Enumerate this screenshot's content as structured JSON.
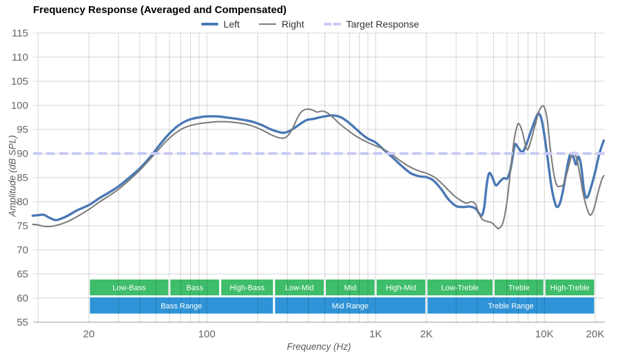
{
  "header": {
    "title": "Frequency Response (Averaged and Compensated)"
  },
  "legend": {
    "items": [
      {
        "label": "Left",
        "color": "#4a78b5",
        "style": "solid-thick"
      },
      {
        "label": "Right",
        "color": "#7d7d7d",
        "style": "solid-thin"
      },
      {
        "label": "Target Response",
        "color": "#c8caf5",
        "style": "dashed"
      }
    ]
  },
  "axes": {
    "x_title": "Frequency (Hz)",
    "y_title": "Amplitude (dB SPL)",
    "x_ticks": [
      {
        "f": 20,
        "label": "20"
      },
      {
        "f": 100,
        "label": "100"
      },
      {
        "f": 1000,
        "label": "1K"
      },
      {
        "f": 2000,
        "label": "2K"
      },
      {
        "f": 10000,
        "label": "10K"
      },
      {
        "f": 20000,
        "label": "20K"
      }
    ],
    "y_ticks": [
      55,
      60,
      65,
      70,
      75,
      80,
      85,
      90,
      95,
      100,
      105,
      110,
      115
    ],
    "minor_gridline_freqs": [
      10,
      20,
      30,
      40,
      50,
      60,
      70,
      80,
      90,
      100,
      200,
      300,
      400,
      500,
      600,
      700,
      800,
      900,
      1000,
      2000,
      3000,
      4000,
      5000,
      6000,
      7000,
      8000,
      9000,
      10000,
      20000
    ],
    "gridline_color": "rgba(0,0,0,0.16)",
    "axis_line_color": "#9b9b9b",
    "tick_label_color": "#666666"
  },
  "bands": {
    "sub_color": "#3ebd6a",
    "main_color": "#2f94d7",
    "label_color": "#ffffff",
    "sub": [
      {
        "label": "Low-Bass",
        "from": 20,
        "to": 60
      },
      {
        "label": "Bass",
        "from": 60,
        "to": 120
      },
      {
        "label": "High-Bass",
        "from": 120,
        "to": 250
      },
      {
        "label": "Low-Mid",
        "from": 250,
        "to": 500
      },
      {
        "label": "Mid",
        "from": 500,
        "to": 1000
      },
      {
        "label": "High-Mid",
        "from": 1000,
        "to": 2000
      },
      {
        "label": "Low-Treble",
        "from": 2000,
        "to": 5000
      },
      {
        "label": "Treble",
        "from": 5000,
        "to": 10000
      },
      {
        "label": "High-Treble",
        "from": 10000,
        "to": 20000
      }
    ],
    "main": [
      {
        "label": "Bass Range",
        "from": 20,
        "to": 250
      },
      {
        "label": "Mid Range",
        "from": 250,
        "to": 2000
      },
      {
        "label": "Treble Range",
        "from": 2000,
        "to": 20000
      }
    ]
  },
  "chart_data": {
    "type": "line",
    "title": "Frequency Response (Averaged and Compensated)",
    "xlabel": "Frequency (Hz)",
    "ylabel": "Amplitude (dB SPL)",
    "x_scale": "log",
    "xlim": [
      9.3,
      22500
    ],
    "ylim": [
      55,
      115
    ],
    "grid": true,
    "legend_position": "top-center",
    "target_db": 90,
    "series": [
      {
        "name": "Left",
        "color": "#4a78b5",
        "width": 3.4,
        "points": [
          [
            9.3,
            77.1
          ],
          [
            10,
            77.2
          ],
          [
            10.8,
            77.3
          ],
          [
            11.5,
            76.8
          ],
          [
            12.6,
            76.2
          ],
          [
            13.5,
            76.4
          ],
          [
            15,
            77.1
          ],
          [
            17,
            78.2
          ],
          [
            20,
            79.3
          ],
          [
            23,
            80.7
          ],
          [
            26,
            81.8
          ],
          [
            30,
            83.2
          ],
          [
            35,
            85.1
          ],
          [
            40,
            86.9
          ],
          [
            46,
            89.2
          ],
          [
            52,
            91.6
          ],
          [
            58,
            93.6
          ],
          [
            65,
            95.3
          ],
          [
            72,
            96.4
          ],
          [
            80,
            97.1
          ],
          [
            90,
            97.5
          ],
          [
            100,
            97.7
          ],
          [
            115,
            97.7
          ],
          [
            130,
            97.5
          ],
          [
            150,
            97.2
          ],
          [
            170,
            96.9
          ],
          [
            190,
            96.5
          ],
          [
            215,
            95.8
          ],
          [
            240,
            95.0
          ],
          [
            265,
            94.5
          ],
          [
            285,
            94.3
          ],
          [
            310,
            94.7
          ],
          [
            340,
            95.6
          ],
          [
            370,
            96.5
          ],
          [
            395,
            97.0
          ],
          [
            430,
            97.2
          ],
          [
            465,
            97.5
          ],
          [
            500,
            97.7
          ],
          [
            545,
            97.9
          ],
          [
            590,
            97.8
          ],
          [
            640,
            97.3
          ],
          [
            700,
            96.3
          ],
          [
            760,
            95.2
          ],
          [
            830,
            94.0
          ],
          [
            900,
            93.1
          ],
          [
            1000,
            92.3
          ],
          [
            1100,
            91.0
          ],
          [
            1250,
            89.3
          ],
          [
            1400,
            87.7
          ],
          [
            1600,
            86.0
          ],
          [
            1800,
            85.3
          ],
          [
            2000,
            85.1
          ],
          [
            2200,
            84.4
          ],
          [
            2450,
            82.6
          ],
          [
            2700,
            80.5
          ],
          [
            3000,
            79.1
          ],
          [
            3300,
            78.9
          ],
          [
            3600,
            79.0
          ],
          [
            3900,
            78.6
          ],
          [
            4100,
            77.6
          ],
          [
            4250,
            77.1
          ],
          [
            4400,
            78.9
          ],
          [
            4550,
            83.5
          ],
          [
            4700,
            85.9
          ],
          [
            4900,
            85.2
          ],
          [
            5150,
            83.4
          ],
          [
            5450,
            84.2
          ],
          [
            5750,
            84.9
          ],
          [
            6000,
            84.8
          ],
          [
            6250,
            86.2
          ],
          [
            6500,
            89.5
          ],
          [
            6700,
            91.9
          ],
          [
            7000,
            91.2
          ],
          [
            7400,
            90.3
          ],
          [
            7800,
            91.8
          ],
          [
            8300,
            94.5
          ],
          [
            8800,
            96.9
          ],
          [
            9200,
            98.3
          ],
          [
            9600,
            97.2
          ],
          [
            10000,
            93.8
          ],
          [
            10500,
            88.5
          ],
          [
            11000,
            83.2
          ],
          [
            11500,
            80.0
          ],
          [
            11900,
            78.9
          ],
          [
            12400,
            79.8
          ],
          [
            13000,
            83.0
          ],
          [
            13700,
            87.5
          ],
          [
            14200,
            89.8
          ],
          [
            14800,
            89.4
          ],
          [
            15400,
            87.7
          ],
          [
            15900,
            89.4
          ],
          [
            16500,
            87.5
          ],
          [
            17100,
            82.8
          ],
          [
            17600,
            80.9
          ],
          [
            18200,
            81.3
          ],
          [
            19000,
            83.3
          ],
          [
            20000,
            86.2
          ],
          [
            21000,
            89.5
          ],
          [
            22000,
            91.8
          ],
          [
            22500,
            92.7
          ]
        ]
      },
      {
        "name": "Right",
        "color": "#7d7d7d",
        "width": 2.1,
        "points": [
          [
            9.3,
            75.3
          ],
          [
            10,
            75.2
          ],
          [
            10.8,
            74.9
          ],
          [
            12,
            74.9
          ],
          [
            13.5,
            75.3
          ],
          [
            15,
            75.9
          ],
          [
            17,
            76.9
          ],
          [
            20,
            78.4
          ],
          [
            23,
            79.9
          ],
          [
            26,
            81.1
          ],
          [
            30,
            82.6
          ],
          [
            35,
            84.6
          ],
          [
            40,
            86.5
          ],
          [
            46,
            88.8
          ],
          [
            52,
            90.9
          ],
          [
            58,
            92.7
          ],
          [
            65,
            94.2
          ],
          [
            72,
            95.2
          ],
          [
            80,
            95.8
          ],
          [
            90,
            96.2
          ],
          [
            100,
            96.4
          ],
          [
            115,
            96.6
          ],
          [
            130,
            96.6
          ],
          [
            150,
            96.4
          ],
          [
            170,
            96.1
          ],
          [
            190,
            95.6
          ],
          [
            215,
            94.8
          ],
          [
            240,
            93.9
          ],
          [
            265,
            93.3
          ],
          [
            285,
            93.2
          ],
          [
            300,
            93.6
          ],
          [
            320,
            95.0
          ],
          [
            340,
            97.0
          ],
          [
            360,
            98.5
          ],
          [
            380,
            99.1
          ],
          [
            400,
            99.2
          ],
          [
            425,
            99.0
          ],
          [
            450,
            98.6
          ],
          [
            475,
            98.8
          ],
          [
            500,
            98.7
          ],
          [
            530,
            98.2
          ],
          [
            570,
            97.2
          ],
          [
            620,
            96.0
          ],
          [
            680,
            94.9
          ],
          [
            750,
            93.8
          ],
          [
            830,
            92.9
          ],
          [
            900,
            92.3
          ],
          [
            1000,
            91.6
          ],
          [
            1100,
            91.0
          ],
          [
            1250,
            89.8
          ],
          [
            1400,
            88.5
          ],
          [
            1600,
            87.2
          ],
          [
            1800,
            86.4
          ],
          [
            2000,
            85.9
          ],
          [
            2250,
            85.0
          ],
          [
            2500,
            83.6
          ],
          [
            2750,
            82.1
          ],
          [
            3000,
            80.9
          ],
          [
            3250,
            80.1
          ],
          [
            3450,
            79.7
          ],
          [
            3700,
            80.0
          ],
          [
            3900,
            79.5
          ],
          [
            4100,
            77.5
          ],
          [
            4300,
            76.3
          ],
          [
            4600,
            75.9
          ],
          [
            4900,
            75.6
          ],
          [
            5200,
            74.7
          ],
          [
            5400,
            74.5
          ],
          [
            5700,
            75.8
          ],
          [
            6000,
            80.0
          ],
          [
            6300,
            86.5
          ],
          [
            6600,
            92.5
          ],
          [
            6900,
            95.8
          ],
          [
            7100,
            96.1
          ],
          [
            7400,
            94.5
          ],
          [
            7700,
            92.0
          ],
          [
            7950,
            90.8
          ],
          [
            8300,
            92.5
          ],
          [
            8800,
            95.8
          ],
          [
            9300,
            98.8
          ],
          [
            9700,
            99.8
          ],
          [
            10000,
            99.6
          ],
          [
            10400,
            97.0
          ],
          [
            10800,
            91.5
          ],
          [
            11300,
            86.3
          ],
          [
            11800,
            83.5
          ],
          [
            12400,
            83.2
          ],
          [
            13000,
            83.7
          ],
          [
            13700,
            86.3
          ],
          [
            14400,
            89.2
          ],
          [
            15000,
            90.2
          ],
          [
            15600,
            88.6
          ],
          [
            16200,
            85.8
          ],
          [
            16800,
            82.5
          ],
          [
            17400,
            80.0
          ],
          [
            18000,
            78.3
          ],
          [
            18600,
            77.2
          ],
          [
            19300,
            77.8
          ],
          [
            20000,
            79.5
          ],
          [
            21000,
            82.5
          ],
          [
            22000,
            84.8
          ],
          [
            22500,
            85.4
          ]
        ]
      },
      {
        "name": "Target Response",
        "color": "#c8caf5",
        "width": 4,
        "dash": [
          12.5,
          6.5
        ],
        "db": 90
      }
    ]
  }
}
